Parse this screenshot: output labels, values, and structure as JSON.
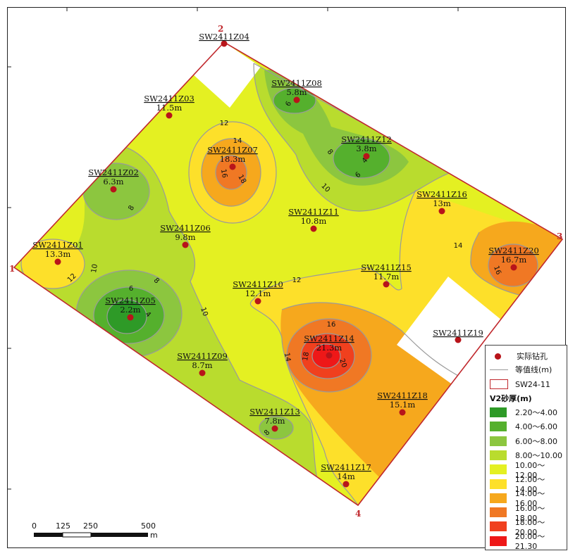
{
  "corners": [
    "1",
    "2",
    "3",
    "4"
  ],
  "boreholes": [
    {
      "id": "SW2411Z04",
      "value": ""
    },
    {
      "id": "SW2411Z08",
      "value": "5.8m"
    },
    {
      "id": "SW2411Z03",
      "value": "11.5m"
    },
    {
      "id": "SW2411Z07",
      "value": "18.3m"
    },
    {
      "id": "SW2411Z12",
      "value": "3.8m"
    },
    {
      "id": "SW2411Z02",
      "value": "6.3m"
    },
    {
      "id": "SW2411Z16",
      "value": "13m"
    },
    {
      "id": "SW2411Z11",
      "value": "10.8m"
    },
    {
      "id": "SW2411Z06",
      "value": "9.8m"
    },
    {
      "id": "SW2411Z01",
      "value": "13.3m"
    },
    {
      "id": "SW2411Z20",
      "value": "16.7m"
    },
    {
      "id": "SW2411Z15",
      "value": "11.7m"
    },
    {
      "id": "SW2411Z10",
      "value": "12.1m"
    },
    {
      "id": "SW2411Z05",
      "value": "2.2m"
    },
    {
      "id": "SW2411Z19",
      "value": ""
    },
    {
      "id": "SW2411Z14",
      "value": "21.3m"
    },
    {
      "id": "SW2411Z09",
      "value": "8.7m"
    },
    {
      "id": "SW2411Z18",
      "value": "15.1m"
    },
    {
      "id": "SW2411Z13",
      "value": "7.8m"
    },
    {
      "id": "SW2411Z17",
      "value": "14m"
    }
  ],
  "contour_labels": [
    "4",
    "6",
    "8",
    "10",
    "12",
    "14",
    "16",
    "18",
    "20"
  ],
  "scale_bar": {
    "ticks": [
      "0",
      "125",
      "250",
      "500"
    ],
    "unit": "m"
  },
  "legend": {
    "borehole_label": "实际钻孔",
    "contour_label": "等值线(m)",
    "area_label": "SW24-11",
    "title": "V2砂厚(m)",
    "classes": [
      {
        "range": "2.20～4.00",
        "color": "#2e9a27"
      },
      {
        "range": "4.00～6.00",
        "color": "#55b02d"
      },
      {
        "range": "6.00～8.00",
        "color": "#8cc63f"
      },
      {
        "range": "8.00～10.00",
        "color": "#b9dc2e"
      },
      {
        "range": "10.00～12.00",
        "color": "#e4f022"
      },
      {
        "range": "12.00～14.00",
        "color": "#fde02a"
      },
      {
        "range": "14.00～16.00",
        "color": "#f6a81d"
      },
      {
        "range": "16.00～18.00",
        "color": "#f07824"
      },
      {
        "range": "18.00～20.00",
        "color": "#f0401e"
      },
      {
        "range": "20.00～21.30",
        "color": "#ee1818"
      }
    ]
  },
  "colors": {
    "boundary": "#c0282d",
    "point": "#b8141a",
    "contour": "#a0a0a0",
    "base_fill": "#e4f022"
  }
}
